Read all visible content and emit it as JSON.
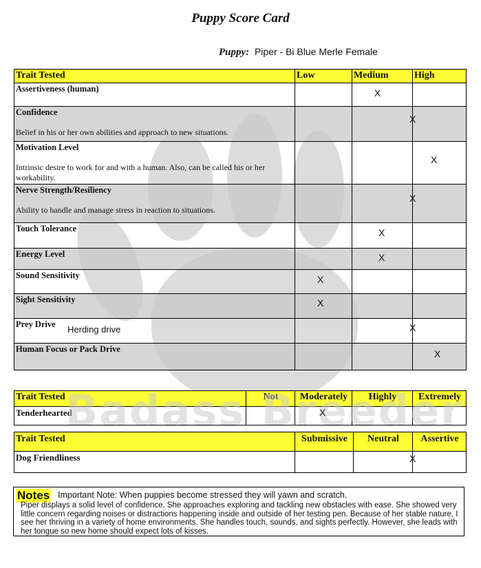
{
  "title": "Puppy Score Card",
  "puppy": {
    "label": "Puppy:",
    "value": "Piper - Bi Blue Merle Female"
  },
  "watermark": "Badass Breeder",
  "table1": {
    "headers": [
      "Trait Tested",
      "Low",
      "Medium",
      "High"
    ],
    "rows": [
      {
        "trait": "Assertiveness (human)",
        "desc": "",
        "score": "Medium",
        "note": ""
      },
      {
        "trait": "Confidence",
        "desc": "Belief in his or her own abilities and approach to new situations.",
        "score": "Medium/High",
        "note": ""
      },
      {
        "trait": "Motivation Level",
        "desc": "Intrinsic desire to work for and with a human. Also, can be called his or her workability.",
        "score": "High",
        "note": ""
      },
      {
        "trait": "Nerve Strength/Resiliency",
        "desc": "Ability to handle and manage stress in reaction to situations.",
        "score": "Medium/High",
        "note": ""
      },
      {
        "trait": "Touch Tolerance",
        "desc": "",
        "score": "Medium",
        "note": ""
      },
      {
        "trait": "Energy Level",
        "desc": "",
        "score": "Medium",
        "note": ""
      },
      {
        "trait": "Sound Sensitivity",
        "desc": "",
        "score": "Low",
        "note": ""
      },
      {
        "trait": "Sight Sensitivity",
        "desc": "",
        "score": "Low",
        "note": ""
      },
      {
        "trait": "Prey Drive",
        "desc": "",
        "score": "Medium/High",
        "note": "Herding drive"
      },
      {
        "trait": "Human Focus or Pack Drive",
        "desc": "",
        "score": "High",
        "note": ""
      }
    ]
  },
  "table2": {
    "headers": [
      "Trait Tested",
      "Not",
      "Moderately",
      "Highly",
      "Extremely"
    ],
    "rows": [
      {
        "trait": "Tenderhearted",
        "score": "Moderately"
      }
    ]
  },
  "table3": {
    "headers": [
      "Trait Tested",
      "Submissive",
      "Neutral",
      "Assertive"
    ],
    "rows": [
      {
        "trait": "Dog Friendliness",
        "score": "Neutral/Assertive"
      }
    ]
  },
  "mark": "X",
  "notes": {
    "label": "Notes",
    "important": "Important Note: When puppies become stressed they will yawn and scratch.",
    "body": "Piper displays a solid level of confidence. She approaches exploring and tackling new obstacles with ease. She showed very little concern regarding noises or distractions happening inside and outside of her testing pen. Because of her stable nature, I see her thriving in a variety of home environments. She handles touch, sounds, and sights perfectly. However, she leads with her tongue so new home should expect lots of kisses."
  },
  "colors": {
    "header": "#ffff33",
    "shade": "#d3d3d3"
  }
}
